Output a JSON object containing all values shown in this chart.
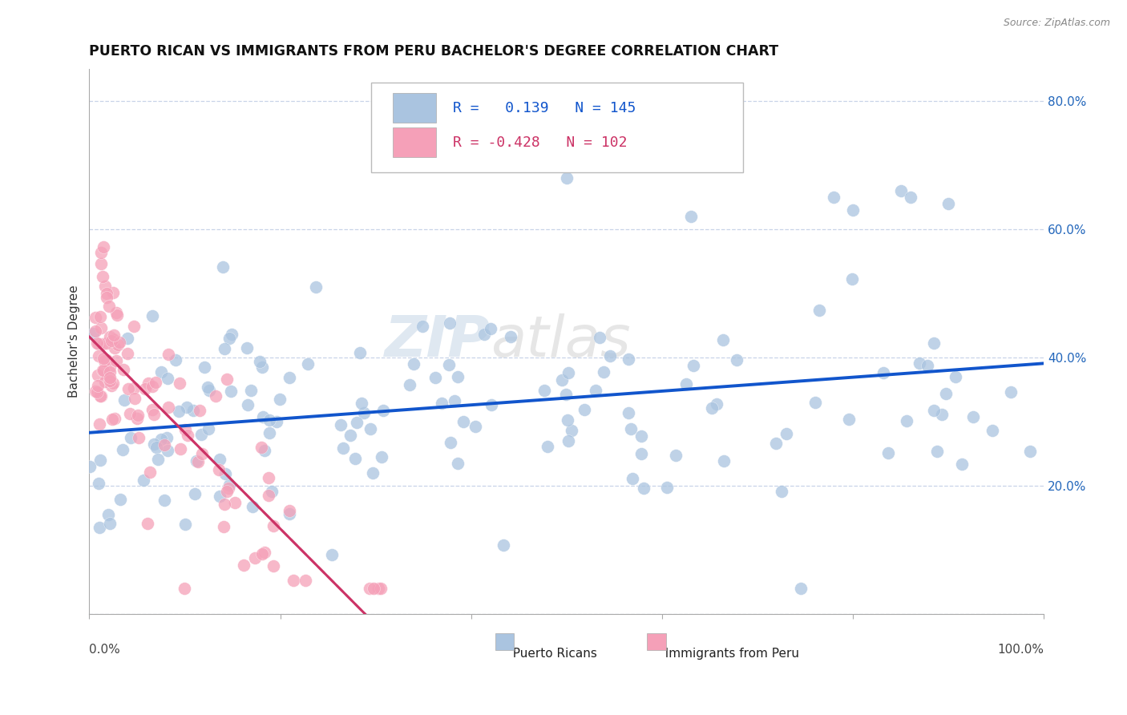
{
  "title": "PUERTO RICAN VS IMMIGRANTS FROM PERU BACHELOR'S DEGREE CORRELATION CHART",
  "source_text": "Source: ZipAtlas.com",
  "ylabel": "Bachelor's Degree",
  "watermark_text": "ZIP",
  "watermark_text2": "atlas",
  "legend_entries": [
    {
      "label": "Puerto Ricans",
      "color": "#aac4e0",
      "line_color": "#1155cc",
      "R": 0.139,
      "N": 145
    },
    {
      "label": "Immigrants from Peru",
      "color": "#f5a0b8",
      "line_color": "#cc3366",
      "R": -0.428,
      "N": 102
    }
  ],
  "background_color": "#ffffff",
  "grid_color": "#c8d4e8",
  "xlim": [
    0.0,
    1.0
  ],
  "ylim": [
    0.0,
    0.85
  ],
  "yticks": [
    0.0,
    0.2,
    0.4,
    0.6,
    0.8
  ],
  "ytick_labels": [
    "",
    "20.0%",
    "40.0%",
    "60.0%",
    "80.0%"
  ]
}
